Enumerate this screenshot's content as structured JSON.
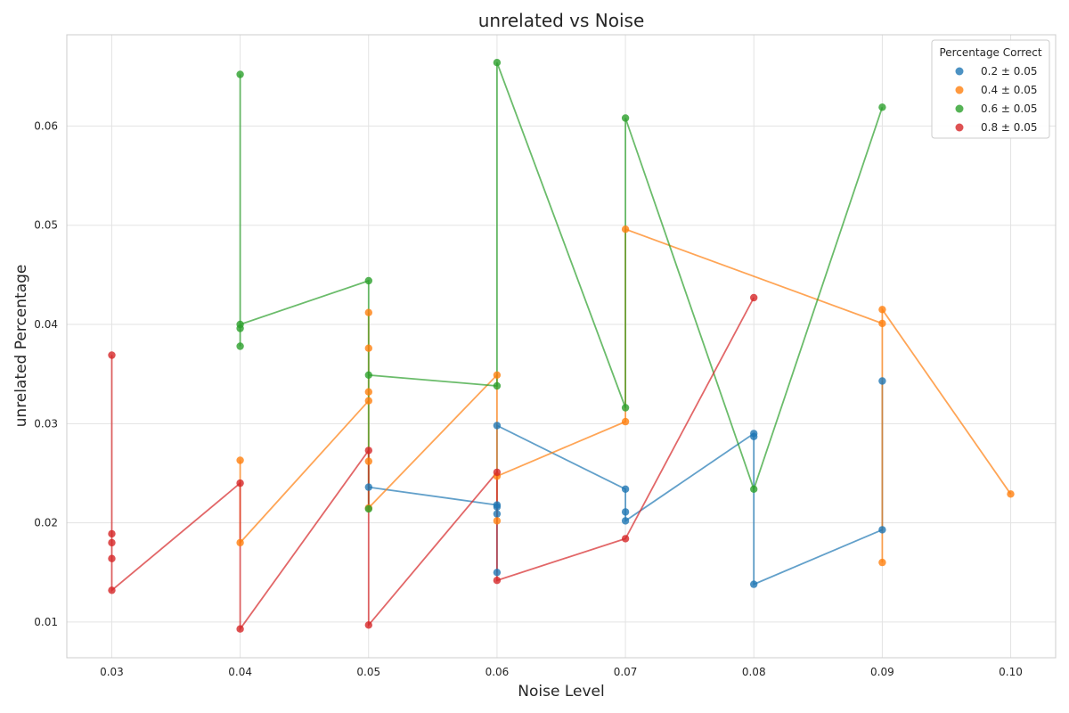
{
  "chart_data": {
    "type": "scatter",
    "title": "unrelated vs Noise",
    "xlabel": "Noise Level",
    "ylabel": "unrelated Percentage",
    "xlim": [
      0.0265,
      0.1035
    ],
    "ylim": [
      0.0064,
      0.0692
    ],
    "xticks": [
      0.03,
      0.04,
      0.05,
      0.06,
      0.07,
      0.08,
      0.09,
      0.1
    ],
    "xtick_labels": [
      "0.03",
      "0.04",
      "0.05",
      "0.06",
      "0.07",
      "0.08",
      "0.09",
      "0.10"
    ],
    "yticks": [
      0.01,
      0.02,
      0.03,
      0.04,
      0.05,
      0.06
    ],
    "ytick_labels": [
      "0.01",
      "0.02",
      "0.03",
      "0.04",
      "0.05",
      "0.06"
    ],
    "grid": true,
    "legend_title": "Percentage Correct",
    "legend_position": "top-right",
    "series": [
      {
        "name": "0.2 ± 0.05",
        "color": "#1f77b4",
        "points": [
          [
            0.05,
            0.0236
          ],
          [
            0.06,
            0.0298
          ],
          [
            0.06,
            0.0218
          ],
          [
            0.06,
            0.0216
          ],
          [
            0.06,
            0.0209
          ],
          [
            0.06,
            0.015
          ],
          [
            0.07,
            0.0234
          ],
          [
            0.07,
            0.0211
          ],
          [
            0.07,
            0.0202
          ],
          [
            0.08,
            0.029
          ],
          [
            0.08,
            0.0287
          ],
          [
            0.08,
            0.0138
          ],
          [
            0.09,
            0.0343
          ],
          [
            0.09,
            0.0193
          ]
        ],
        "path": [
          [
            0.05,
            0.0236
          ],
          [
            0.06,
            0.0218
          ],
          [
            0.06,
            0.015
          ],
          [
            0.06,
            0.0298
          ],
          [
            0.07,
            0.0234
          ],
          [
            0.07,
            0.0202
          ],
          [
            0.08,
            0.029
          ],
          [
            0.08,
            0.0138
          ],
          [
            0.09,
            0.0193
          ],
          [
            0.09,
            0.0343
          ]
        ]
      },
      {
        "name": "0.4 ± 0.05",
        "color": "#ff7f0e",
        "points": [
          [
            0.04,
            0.0263
          ],
          [
            0.04,
            0.018
          ],
          [
            0.05,
            0.0412
          ],
          [
            0.05,
            0.0376
          ],
          [
            0.05,
            0.0332
          ],
          [
            0.05,
            0.0323
          ],
          [
            0.05,
            0.0262
          ],
          [
            0.05,
            0.0215
          ],
          [
            0.06,
            0.0349
          ],
          [
            0.06,
            0.0247
          ],
          [
            0.06,
            0.0202
          ],
          [
            0.07,
            0.0496
          ],
          [
            0.07,
            0.0302
          ],
          [
            0.09,
            0.0415
          ],
          [
            0.09,
            0.0401
          ],
          [
            0.09,
            0.016
          ],
          [
            0.1,
            0.0229
          ]
        ],
        "path": [
          [
            0.04,
            0.0263
          ],
          [
            0.04,
            0.018
          ],
          [
            0.05,
            0.0323
          ],
          [
            0.05,
            0.0412
          ],
          [
            0.05,
            0.0215
          ],
          [
            0.06,
            0.0349
          ],
          [
            0.06,
            0.0202
          ],
          [
            0.06,
            0.0247
          ],
          [
            0.07,
            0.0302
          ],
          [
            0.07,
            0.0496
          ],
          [
            0.09,
            0.0401
          ],
          [
            0.09,
            0.016
          ],
          [
            0.09,
            0.0415
          ],
          [
            0.1,
            0.0229
          ]
        ]
      },
      {
        "name": "0.6 ± 0.05",
        "color": "#2ca02c",
        "points": [
          [
            0.04,
            0.0652
          ],
          [
            0.04,
            0.04
          ],
          [
            0.04,
            0.0396
          ],
          [
            0.04,
            0.0378
          ],
          [
            0.05,
            0.0444
          ],
          [
            0.05,
            0.0349
          ],
          [
            0.05,
            0.0214
          ],
          [
            0.06,
            0.0664
          ],
          [
            0.06,
            0.0338
          ],
          [
            0.07,
            0.0608
          ],
          [
            0.07,
            0.0316
          ],
          [
            0.08,
            0.0234
          ],
          [
            0.09,
            0.0619
          ]
        ],
        "path": [
          [
            0.04,
            0.0652
          ],
          [
            0.04,
            0.0378
          ],
          [
            0.04,
            0.04
          ],
          [
            0.05,
            0.0444
          ],
          [
            0.05,
            0.0214
          ],
          [
            0.05,
            0.0349
          ],
          [
            0.06,
            0.0338
          ],
          [
            0.06,
            0.0664
          ],
          [
            0.07,
            0.0316
          ],
          [
            0.07,
            0.0608
          ],
          [
            0.08,
            0.0234
          ],
          [
            0.09,
            0.0619
          ]
        ]
      },
      {
        "name": "0.8 ± 0.05",
        "color": "#d62728",
        "points": [
          [
            0.03,
            0.0369
          ],
          [
            0.03,
            0.0189
          ],
          [
            0.03,
            0.018
          ],
          [
            0.03,
            0.0164
          ],
          [
            0.03,
            0.0132
          ],
          [
            0.04,
            0.024
          ],
          [
            0.04,
            0.0093
          ],
          [
            0.05,
            0.0273
          ],
          [
            0.05,
            0.0097
          ],
          [
            0.06,
            0.0251
          ],
          [
            0.06,
            0.0142
          ],
          [
            0.07,
            0.0184
          ],
          [
            0.08,
            0.0427
          ]
        ],
        "path": [
          [
            0.03,
            0.0369
          ],
          [
            0.03,
            0.0132
          ],
          [
            0.04,
            0.024
          ],
          [
            0.04,
            0.0093
          ],
          [
            0.05,
            0.0273
          ],
          [
            0.05,
            0.0097
          ],
          [
            0.06,
            0.0251
          ],
          [
            0.06,
            0.0142
          ],
          [
            0.07,
            0.0184
          ],
          [
            0.08,
            0.0427
          ]
        ]
      }
    ]
  }
}
